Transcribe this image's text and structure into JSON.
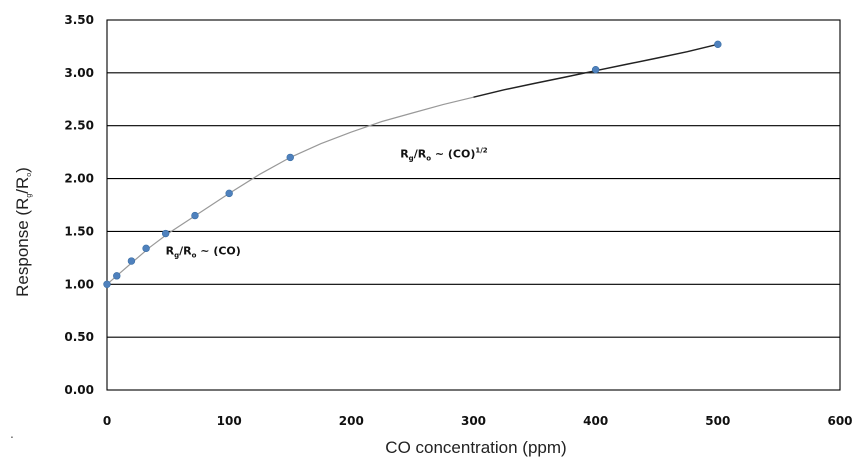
{
  "chart_data": {
    "type": "scatter",
    "title": "",
    "xlabel": "CO concentration (ppm)",
    "ylabel": {
      "main": "Response (R",
      "sub1": "g",
      "mid": "/R",
      "sub2": "o",
      "end": ")"
    },
    "xlim": [
      0,
      600
    ],
    "ylim": [
      0,
      3.5
    ],
    "x_ticks": [
      0,
      100,
      200,
      300,
      400,
      500,
      600
    ],
    "y_ticks": [
      0,
      0.5,
      1.0,
      1.5,
      2.0,
      2.5,
      3.0,
      3.5
    ],
    "x_tick_labels": [
      "0",
      "100",
      "200",
      "300",
      "400",
      "500",
      "600"
    ],
    "y_tick_labels": [
      "0.00",
      "0.50",
      "1.00",
      "1.50",
      "2.00",
      "2.50",
      "3.00",
      "3.50"
    ],
    "grid": "horizontal",
    "points": {
      "x": [
        0,
        8,
        20,
        32,
        48,
        72,
        100,
        150,
        400,
        500
      ],
      "y": [
        1.0,
        1.08,
        1.22,
        1.34,
        1.48,
        1.65,
        1.86,
        2.2,
        3.03,
        3.27
      ],
      "color": "#4f81bd"
    },
    "fit_curve": {
      "x": [
        0,
        10,
        20,
        35,
        50,
        75,
        100,
        125,
        150,
        175,
        200,
        225,
        250,
        275,
        300,
        325,
        350,
        375,
        400,
        425,
        450,
        475,
        500
      ],
      "y": [
        1.0,
        1.1,
        1.2,
        1.35,
        1.48,
        1.67,
        1.86,
        2.04,
        2.2,
        2.33,
        2.44,
        2.54,
        2.62,
        2.7,
        2.77,
        2.84,
        2.9,
        2.96,
        3.02,
        3.08,
        3.14,
        3.2,
        3.27
      ],
      "color": "#999999",
      "dark_color": "#222222",
      "dark_from_x": 300
    },
    "annotations": [
      {
        "x": 48,
        "y": 1.28,
        "pre": "R",
        "sub1": "g",
        "mid": "/R",
        "sub2": "o",
        "post": " ~ (CO)",
        "sup": ""
      },
      {
        "x": 240,
        "y": 2.2,
        "pre": "R",
        "sub1": "g",
        "mid": "/R",
        "sub2": "o",
        "post": " ~ (CO)",
        "sup": "1/2"
      }
    ],
    "stray_mark": "."
  }
}
